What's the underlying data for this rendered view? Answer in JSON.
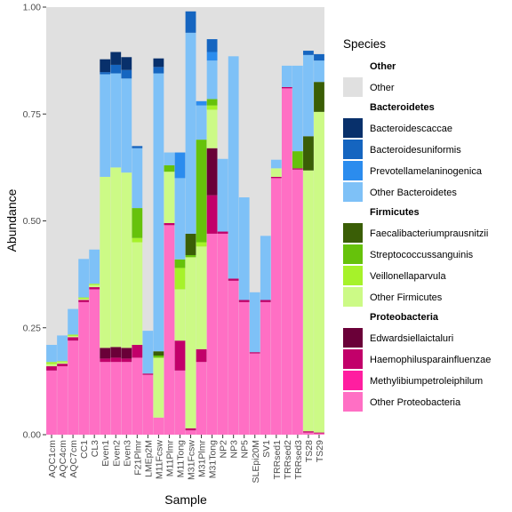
{
  "chart_data": {
    "type": "bar",
    "stacked": true,
    "xlabel": "Sample",
    "ylabel": "Abundance",
    "ylim": [
      0,
      1
    ],
    "y_ticks": [
      "0.00",
      "0.25",
      "0.50",
      "0.75",
      "1.00"
    ],
    "y_tick_values": [
      0,
      0.25,
      0.5,
      0.75,
      1.0
    ],
    "grid": false,
    "panel_background": "#e0e0e0",
    "legend_position": "right",
    "categories": [
      "AQC1cm",
      "AQC4cm",
      "AQC7cm",
      "CC1",
      "CL3",
      "Even1",
      "Even2",
      "Even3",
      "F21Plmr",
      "LMEp2M",
      "M11Fcsw",
      "M11Plmr",
      "M11Tong",
      "M31Fcsw",
      "M31Plmr",
      "M31Tong",
      "NP2",
      "NP3",
      "NP5",
      "SLEpi20M",
      "SV1",
      "TRRsed1",
      "TRRsed2",
      "TRRsed3",
      "TS28",
      "TS29"
    ],
    "legend": {
      "title": "Species",
      "groups": [
        {
          "title": "Other",
          "items": [
            {
              "label": "Other",
              "color": "#e0e0e0"
            }
          ]
        },
        {
          "title": "Bacteroidetes",
          "items": [
            {
              "label": "Bacteroidescaccae",
              "color": "#08306b"
            },
            {
              "label": "Bacteroidesuniformis",
              "color": "#1565c0"
            },
            {
              "label": "Prevotellamelaninogenica",
              "color": "#2b8cee"
            },
            {
              "label": "Other Bacteroidetes",
              "color": "#7ec1f7"
            }
          ]
        },
        {
          "title": "Firmicutes",
          "items": [
            {
              "label": "Faecalibacteriumprausnitzii",
              "color": "#3a5e06"
            },
            {
              "label": "Streptococcussanguinis",
              "color": "#66c20b"
            },
            {
              "label": "Veillonellaparvula",
              "color": "#a6f22a"
            },
            {
              "label": "Other Firmicutes",
              "color": "#ccfa86"
            }
          ]
        },
        {
          "title": "Proteobacteria",
          "items": [
            {
              "label": "Edwardsiellaictaluri",
              "color": "#6a0038"
            },
            {
              "label": "Haemophilusparainfluenzae",
              "color": "#c2006a"
            },
            {
              "label": "Methylibiumpetroleiphilum",
              "color": "#ff1ea0"
            },
            {
              "label": "Other Proteobacteria",
              "color": "#ff6fc4"
            }
          ]
        }
      ]
    },
    "series": [
      {
        "name": "Other Proteobacteria",
        "color": "#ff6fc4",
        "values": [
          0.15,
          0.16,
          0.22,
          0.31,
          0.34,
          0.17,
          0.17,
          0.17,
          0.18,
          0.14,
          0.04,
          0.49,
          0.15,
          0.01,
          0.17,
          0.47,
          0.47,
          0.36,
          0.31,
          0.19,
          0.31,
          0.6,
          0.81,
          0.62,
          0.005,
          0.003
        ]
      },
      {
        "name": "Methylibiumpetroleiphilum",
        "color": "#ff1ea0",
        "values": [
          0,
          0,
          0,
          0,
          0,
          0,
          0,
          0,
          0,
          0,
          0,
          0,
          0,
          0,
          0,
          0,
          0,
          0,
          0,
          0,
          0,
          0,
          0,
          0,
          0,
          0
        ]
      },
      {
        "name": "Haemophilusparainfluenzae",
        "color": "#c2006a",
        "values": [
          0.01,
          0.006,
          0.008,
          0.005,
          0.005,
          0.008,
          0.01,
          0.008,
          0.03,
          0.003,
          0,
          0.005,
          0.07,
          0.005,
          0.03,
          0.09,
          0.005,
          0.005,
          0.005,
          0.003,
          0.005,
          0.003,
          0.003,
          0.003,
          0.003,
          0.002
        ]
      },
      {
        "name": "Edwardsiellaictaluri",
        "color": "#6a0038",
        "values": [
          0,
          0,
          0,
          0,
          0,
          0.025,
          0.025,
          0.025,
          0,
          0,
          0,
          0,
          0,
          0,
          0,
          0.11,
          0,
          0,
          0,
          0,
          0,
          0,
          0,
          0,
          0,
          0
        ]
      },
      {
        "name": "Other Firmicutes",
        "color": "#ccfa86",
        "values": [
          0.005,
          0.003,
          0.003,
          0.003,
          0.005,
          0.4,
          0.42,
          0.41,
          0.24,
          0,
          0.14,
          0.12,
          0.12,
          0.4,
          0.24,
          0.09,
          0,
          0,
          0,
          0,
          0,
          0.02,
          0,
          0,
          0.61,
          0.75
        ]
      },
      {
        "name": "Veillonellaparvula",
        "color": "#a6f22a",
        "values": [
          0.005,
          0.003,
          0.003,
          0.003,
          0.003,
          0,
          0,
          0,
          0.01,
          0,
          0,
          0,
          0.05,
          0,
          0.01,
          0.01,
          0,
          0,
          0,
          0,
          0,
          0,
          0,
          0,
          0,
          0
        ]
      },
      {
        "name": "Streptococcussanguinis",
        "color": "#66c20b",
        "values": [
          0,
          0,
          0,
          0,
          0,
          0,
          0,
          0,
          0.07,
          0,
          0.005,
          0.015,
          0.02,
          0.005,
          0.24,
          0.015,
          0,
          0,
          0,
          0,
          0,
          0,
          0,
          0.04,
          0,
          0
        ]
      },
      {
        "name": "Faecalibacteriumprausnitzii",
        "color": "#3a5e06",
        "values": [
          0,
          0,
          0,
          0,
          0,
          0,
          0,
          0,
          0,
          0,
          0.01,
          0,
          0,
          0.05,
          0,
          0,
          0,
          0,
          0,
          0,
          0,
          0,
          0,
          0,
          0.08,
          0.07
        ]
      },
      {
        "name": "Other Bacteroidetes",
        "color": "#7ec1f7",
        "values": [
          0.04,
          0.06,
          0.06,
          0.09,
          0.08,
          0.24,
          0.22,
          0.22,
          0.14,
          0.1,
          0.65,
          0.03,
          0.19,
          0.47,
          0.08,
          0.09,
          0.17,
          0.52,
          0.24,
          0.14,
          0.15,
          0.02,
          0.05,
          0.2,
          0.19,
          0.05
        ]
      },
      {
        "name": "Prevotellamelaninogenica",
        "color": "#2b8cee",
        "values": [
          0,
          0,
          0,
          0,
          0,
          0,
          0,
          0,
          0,
          0,
          0,
          0,
          0.06,
          0,
          0.01,
          0.02,
          0,
          0,
          0,
          0,
          0,
          0,
          0,
          0,
          0,
          0
        ]
      },
      {
        "name": "Bacteroidesuniformis",
        "color": "#1565c0",
        "values": [
          0,
          0,
          0,
          0,
          0,
          0.005,
          0.02,
          0.02,
          0.005,
          0,
          0.015,
          0,
          0,
          0.05,
          0,
          0.03,
          0,
          0,
          0,
          0,
          0,
          0,
          0,
          0,
          0.01,
          0.015
        ]
      },
      {
        "name": "Bacteroidescaccae",
        "color": "#08306b",
        "values": [
          0,
          0,
          0,
          0,
          0,
          0.03,
          0.03,
          0.03,
          0,
          0,
          0.02,
          0,
          0,
          0,
          0,
          0,
          0,
          0,
          0,
          0,
          0,
          0,
          0,
          0,
          0,
          0
        ]
      }
    ]
  }
}
